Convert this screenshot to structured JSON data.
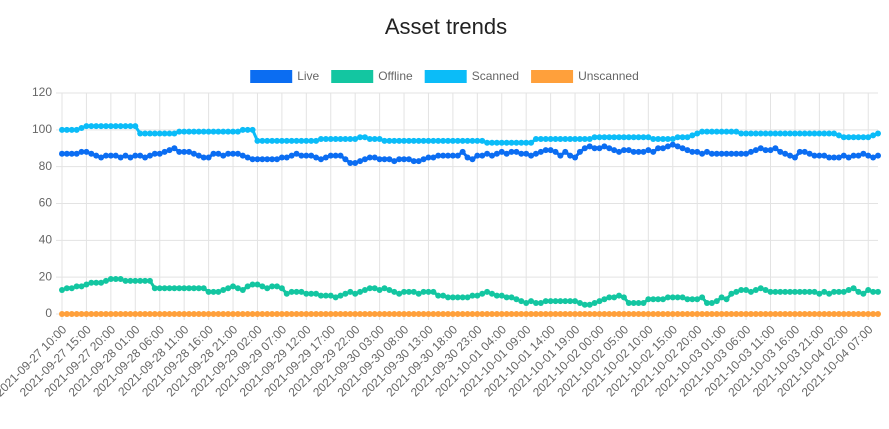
{
  "chart_data": {
    "type": "line",
    "title": "Asset trends",
    "categories": [
      "2021-09-27 10:00",
      null,
      null,
      null,
      null,
      "2021-09-27 15:00",
      null,
      null,
      null,
      null,
      "2021-09-27 20:00",
      null,
      null,
      null,
      null,
      "2021-09-28 01:00",
      null,
      null,
      null,
      null,
      "2021-09-28 06:00",
      null,
      null,
      null,
      null,
      "2021-09-28 11:00",
      null,
      null,
      null,
      null,
      "2021-09-28 16:00",
      null,
      null,
      null,
      null,
      "2021-09-28 21:00",
      null,
      null,
      null,
      null,
      "2021-09-29 02:00",
      null,
      null,
      null,
      null,
      "2021-09-29 07:00",
      null,
      null,
      null,
      null,
      "2021-09-29 12:00",
      null,
      null,
      null,
      null,
      "2021-09-29 17:00",
      null,
      null,
      null,
      null,
      "2021-09-29 22:00",
      null,
      null,
      null,
      null,
      "2021-09-30 03:00",
      null,
      null,
      null,
      null,
      "2021-09-30 08:00",
      null,
      null,
      null,
      null,
      "2021-09-30 13:00",
      null,
      null,
      null,
      null,
      "2021-09-30 18:00",
      null,
      null,
      null,
      null,
      "2021-09-30 23:00",
      null,
      null,
      null,
      null,
      "2021-10-01 04:00",
      null,
      null,
      null,
      null,
      "2021-10-01 09:00",
      null,
      null,
      null,
      null,
      "2021-10-01 14:00",
      null,
      null,
      null,
      null,
      "2021-10-01 19:00",
      null,
      null,
      null,
      null,
      "2021-10-02 00:00",
      null,
      null,
      null,
      null,
      "2021-10-02 05:00",
      null,
      null,
      null,
      null,
      "2021-10-02 10:00",
      null,
      null,
      null,
      null,
      "2021-10-02 15:00",
      null,
      null,
      null,
      null,
      "2021-10-02 20:00",
      null,
      null,
      null,
      null,
      "2021-10-03 01:00",
      null,
      null,
      null,
      null,
      "2021-10-03 06:00",
      null,
      null,
      null,
      null,
      "2021-10-03 11:00",
      null,
      null,
      null,
      null,
      "2021-10-03 16:00",
      null,
      null,
      null,
      null,
      "2021-10-03 21:00",
      null,
      null,
      null,
      null,
      "2021-10-04 02:00",
      null,
      null,
      null,
      null,
      "2021-10-04 07:00",
      null,
      null
    ],
    "series": [
      {
        "name": "Live",
        "color": "#0b6df2",
        "values": [
          87,
          87,
          87,
          87,
          88,
          88,
          87,
          86,
          85,
          86,
          86,
          86,
          85,
          86,
          85,
          86,
          86,
          85,
          86,
          87,
          87,
          88,
          89,
          90,
          88,
          88,
          88,
          87,
          86,
          85,
          85,
          87,
          87,
          86,
          87,
          87,
          87,
          86,
          85,
          84,
          84,
          84,
          84,
          84,
          84,
          85,
          85,
          86,
          87,
          86,
          86,
          86,
          85,
          84,
          85,
          86,
          86,
          86,
          84,
          82,
          82,
          83,
          84,
          85,
          85,
          84,
          84,
          84,
          83,
          84,
          84,
          84,
          83,
          83,
          84,
          85,
          85,
          86,
          86,
          86,
          86,
          86,
          88,
          85,
          84,
          86,
          86,
          87,
          86,
          87,
          88,
          87,
          88,
          88,
          87,
          87,
          86,
          87,
          88,
          89,
          89,
          88,
          86,
          88,
          86,
          85,
          88,
          90,
          91,
          90,
          90,
          91,
          90,
          89,
          88,
          89,
          89,
          88,
          88,
          88,
          89,
          88,
          90,
          90,
          91,
          92,
          91,
          90,
          89,
          88,
          88,
          87,
          88,
          87,
          87,
          87,
          87,
          87,
          87,
          87,
          87,
          88,
          89,
          90,
          89,
          89,
          90,
          88,
          87,
          86,
          85,
          88,
          88,
          87,
          86,
          86,
          86,
          85,
          85,
          85,
          86,
          85,
          86,
          86,
          87,
          86,
          85,
          86
        ]
      },
      {
        "name": "Offline",
        "color": "#13c6a1",
        "values": [
          13,
          14,
          14,
          15,
          15,
          16,
          17,
          17,
          17,
          18,
          19,
          19,
          19,
          18,
          18,
          18,
          18,
          18,
          18,
          14,
          14,
          14,
          14,
          14,
          14,
          14,
          14,
          14,
          14,
          14,
          12,
          12,
          12,
          13,
          14,
          15,
          14,
          13,
          15,
          16,
          16,
          15,
          14,
          15,
          15,
          14,
          11,
          12,
          12,
          12,
          11,
          11,
          11,
          10,
          10,
          10,
          9,
          10,
          11,
          12,
          11,
          12,
          13,
          14,
          14,
          13,
          14,
          13,
          12,
          11,
          12,
          12,
          12,
          11,
          12,
          12,
          12,
          10,
          10,
          9,
          9,
          9,
          9,
          9,
          10,
          10,
          11,
          12,
          11,
          10,
          10,
          9,
          9,
          8,
          7,
          6,
          7,
          6,
          6,
          7,
          7,
          7,
          7,
          7,
          7,
          7,
          6,
          5,
          5,
          6,
          7,
          8,
          9,
          9,
          10,
          9,
          6,
          6,
          6,
          6,
          8,
          8,
          8,
          8,
          9,
          9,
          9,
          9,
          8,
          8,
          8,
          9,
          6,
          6,
          7,
          9,
          8,
          11,
          12,
          13,
          13,
          12,
          13,
          14,
          13,
          12,
          12,
          12,
          12,
          12,
          12,
          12,
          12,
          12,
          12,
          11,
          12,
          11,
          12,
          12,
          12,
          13,
          14,
          12,
          11,
          13,
          12,
          12
        ]
      },
      {
        "name": "Scanned",
        "color": "#0bbcf8",
        "values": [
          100,
          100,
          100,
          100,
          101,
          102,
          102,
          102,
          102,
          102,
          102,
          102,
          102,
          102,
          102,
          102,
          98,
          98,
          98,
          98,
          98,
          98,
          98,
          98,
          99,
          99,
          99,
          99,
          99,
          99,
          99,
          99,
          99,
          99,
          99,
          99,
          99,
          100,
          100,
          100,
          94,
          94,
          94,
          94,
          94,
          94,
          94,
          94,
          94,
          94,
          94,
          94,
          94,
          95,
          95,
          95,
          95,
          95,
          95,
          95,
          95,
          96,
          96,
          95,
          95,
          95,
          94,
          94,
          94,
          94,
          94,
          94,
          94,
          94,
          94,
          94,
          94,
          94,
          94,
          94,
          94,
          94,
          94,
          94,
          94,
          94,
          94,
          93,
          93,
          93,
          93,
          93,
          93,
          93,
          93,
          93,
          93,
          95,
          95,
          95,
          95,
          95,
          95,
          95,
          95,
          95,
          95,
          95,
          95,
          96,
          96,
          96,
          96,
          96,
          96,
          96,
          96,
          96,
          96,
          96,
          96,
          95,
          95,
          95,
          95,
          95,
          96,
          96,
          96,
          97,
          98,
          99,
          99,
          99,
          99,
          99,
          99,
          99,
          99,
          98,
          98,
          98,
          98,
          98,
          98,
          98,
          98,
          98,
          98,
          98,
          98,
          98,
          98,
          98,
          98,
          98,
          98,
          98,
          98,
          97,
          96,
          96,
          96,
          96,
          96,
          96,
          97,
          98
        ]
      },
      {
        "name": "Unscanned",
        "color": "#ffa03b",
        "values": [
          0,
          0,
          0,
          0,
          0,
          0,
          0,
          0,
          0,
          0,
          0,
          0,
          0,
          0,
          0,
          0,
          0,
          0,
          0,
          0,
          0,
          0,
          0,
          0,
          0,
          0,
          0,
          0,
          0,
          0,
          0,
          0,
          0,
          0,
          0,
          0,
          0,
          0,
          0,
          0,
          0,
          0,
          0,
          0,
          0,
          0,
          0,
          0,
          0,
          0,
          0,
          0,
          0,
          0,
          0,
          0,
          0,
          0,
          0,
          0,
          0,
          0,
          0,
          0,
          0,
          0,
          0,
          0,
          0,
          0,
          0,
          0,
          0,
          0,
          0,
          0,
          0,
          0,
          0,
          0,
          0,
          0,
          0,
          0,
          0,
          0,
          0,
          0,
          0,
          0,
          0,
          0,
          0,
          0,
          0,
          0,
          0,
          0,
          0,
          0,
          0,
          0,
          0,
          0,
          0,
          0,
          0,
          0,
          0,
          0,
          0,
          0,
          0,
          0,
          0,
          0,
          0,
          0,
          0,
          0,
          0,
          0,
          0,
          0,
          0,
          0,
          0,
          0,
          0,
          0,
          0,
          0,
          0,
          0,
          0,
          0,
          0,
          0,
          0,
          0,
          0,
          0,
          0,
          0,
          0,
          0,
          0,
          0,
          0,
          0,
          0,
          0,
          0,
          0,
          0,
          0,
          0,
          0,
          0,
          0,
          0,
          0,
          0,
          0,
          0,
          0,
          0,
          0
        ]
      }
    ],
    "ylim": [
      0,
      120
    ],
    "yticks": [
      0,
      20,
      40,
      60,
      80,
      100,
      120
    ],
    "grid": true,
    "legend": "top"
  }
}
